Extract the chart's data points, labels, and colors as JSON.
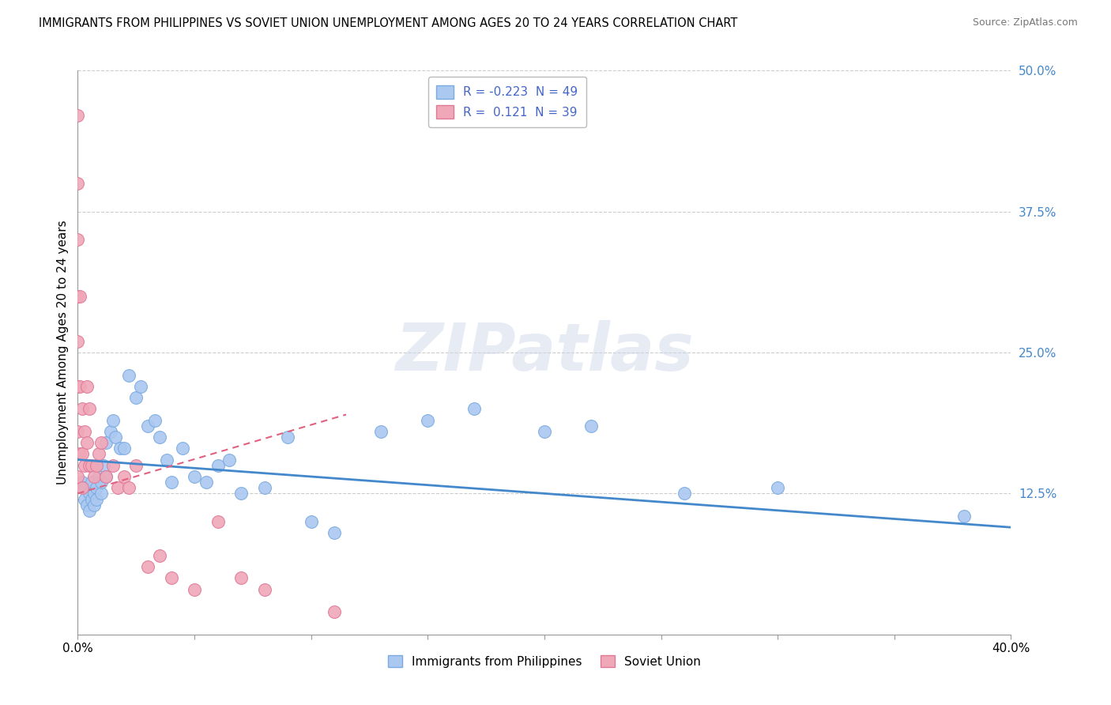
{
  "title": "IMMIGRANTS FROM PHILIPPINES VS SOVIET UNION UNEMPLOYMENT AMONG AGES 20 TO 24 YEARS CORRELATION CHART",
  "source": "Source: ZipAtlas.com",
  "ylabel": "Unemployment Among Ages 20 to 24 years",
  "legend_label_philippines": "Immigrants from Philippines",
  "legend_label_soviet": "Soviet Union",
  "legend_R_philippines": "-0.223",
  "legend_N_philippines": "49",
  "legend_R_soviet": " 0.121",
  "legend_N_soviet": "39",
  "philippines_color": "#aac8f0",
  "philippines_edge": "#7aaae0",
  "soviet_color": "#f0a8b8",
  "soviet_edge": "#e07898",
  "philippines_line_color": "#4488cc",
  "soviet_line_color": "#e06080",
  "watermark_text": "ZIPatlas",
  "philippines_x": [
    0.002,
    0.003,
    0.003,
    0.004,
    0.005,
    0.005,
    0.006,
    0.006,
    0.007,
    0.007,
    0.008,
    0.008,
    0.009,
    0.01,
    0.01,
    0.011,
    0.012,
    0.012,
    0.014,
    0.015,
    0.016,
    0.018,
    0.02,
    0.022,
    0.025,
    0.027,
    0.03,
    0.033,
    0.035,
    0.038,
    0.04,
    0.045,
    0.05,
    0.055,
    0.06,
    0.065,
    0.07,
    0.08,
    0.09,
    0.1,
    0.11,
    0.13,
    0.15,
    0.17,
    0.2,
    0.22,
    0.26,
    0.3,
    0.38
  ],
  "philippines_y": [
    0.135,
    0.12,
    0.13,
    0.115,
    0.125,
    0.11,
    0.135,
    0.12,
    0.125,
    0.115,
    0.13,
    0.12,
    0.14,
    0.125,
    0.135,
    0.15,
    0.14,
    0.17,
    0.18,
    0.19,
    0.175,
    0.165,
    0.165,
    0.23,
    0.21,
    0.22,
    0.185,
    0.19,
    0.175,
    0.155,
    0.135,
    0.165,
    0.14,
    0.135,
    0.15,
    0.155,
    0.125,
    0.13,
    0.175,
    0.1,
    0.09,
    0.18,
    0.19,
    0.2,
    0.18,
    0.185,
    0.125,
    0.13,
    0.105
  ],
  "soviet_x": [
    0.0,
    0.0,
    0.0,
    0.0,
    0.0,
    0.0,
    0.0,
    0.0,
    0.001,
    0.001,
    0.001,
    0.002,
    0.002,
    0.002,
    0.003,
    0.003,
    0.004,
    0.004,
    0.005,
    0.005,
    0.006,
    0.007,
    0.008,
    0.009,
    0.01,
    0.012,
    0.015,
    0.017,
    0.02,
    0.022,
    0.025,
    0.03,
    0.035,
    0.04,
    0.05,
    0.06,
    0.07,
    0.08,
    0.11
  ],
  "soviet_y": [
    0.46,
    0.4,
    0.35,
    0.3,
    0.26,
    0.22,
    0.18,
    0.14,
    0.3,
    0.22,
    0.16,
    0.2,
    0.16,
    0.13,
    0.18,
    0.15,
    0.22,
    0.17,
    0.2,
    0.15,
    0.15,
    0.14,
    0.15,
    0.16,
    0.17,
    0.14,
    0.15,
    0.13,
    0.14,
    0.13,
    0.15,
    0.06,
    0.07,
    0.05,
    0.04,
    0.1,
    0.05,
    0.04,
    0.02
  ],
  "phil_trendline_x": [
    0.0,
    0.4
  ],
  "phil_trendline_y": [
    0.155,
    0.095
  ],
  "soviet_trendline_x": [
    0.0,
    0.115
  ],
  "soviet_trendline_y": [
    0.125,
    0.195
  ],
  "background_color": "#ffffff",
  "grid_color": "#cccccc",
  "xlim": [
    0.0,
    0.4
  ],
  "ylim": [
    0.0,
    0.5
  ],
  "y_ticks": [
    0.0,
    0.125,
    0.25,
    0.375,
    0.5
  ],
  "y_tick_labels": [
    "",
    "12.5%",
    "25.0%",
    "37.5%",
    "50.0%"
  ],
  "x_ticks": [
    0.0,
    0.05,
    0.1,
    0.15,
    0.2,
    0.25,
    0.3,
    0.35,
    0.4
  ],
  "x_tick_labels_left": "0.0%",
  "x_tick_labels_right": "40.0%"
}
